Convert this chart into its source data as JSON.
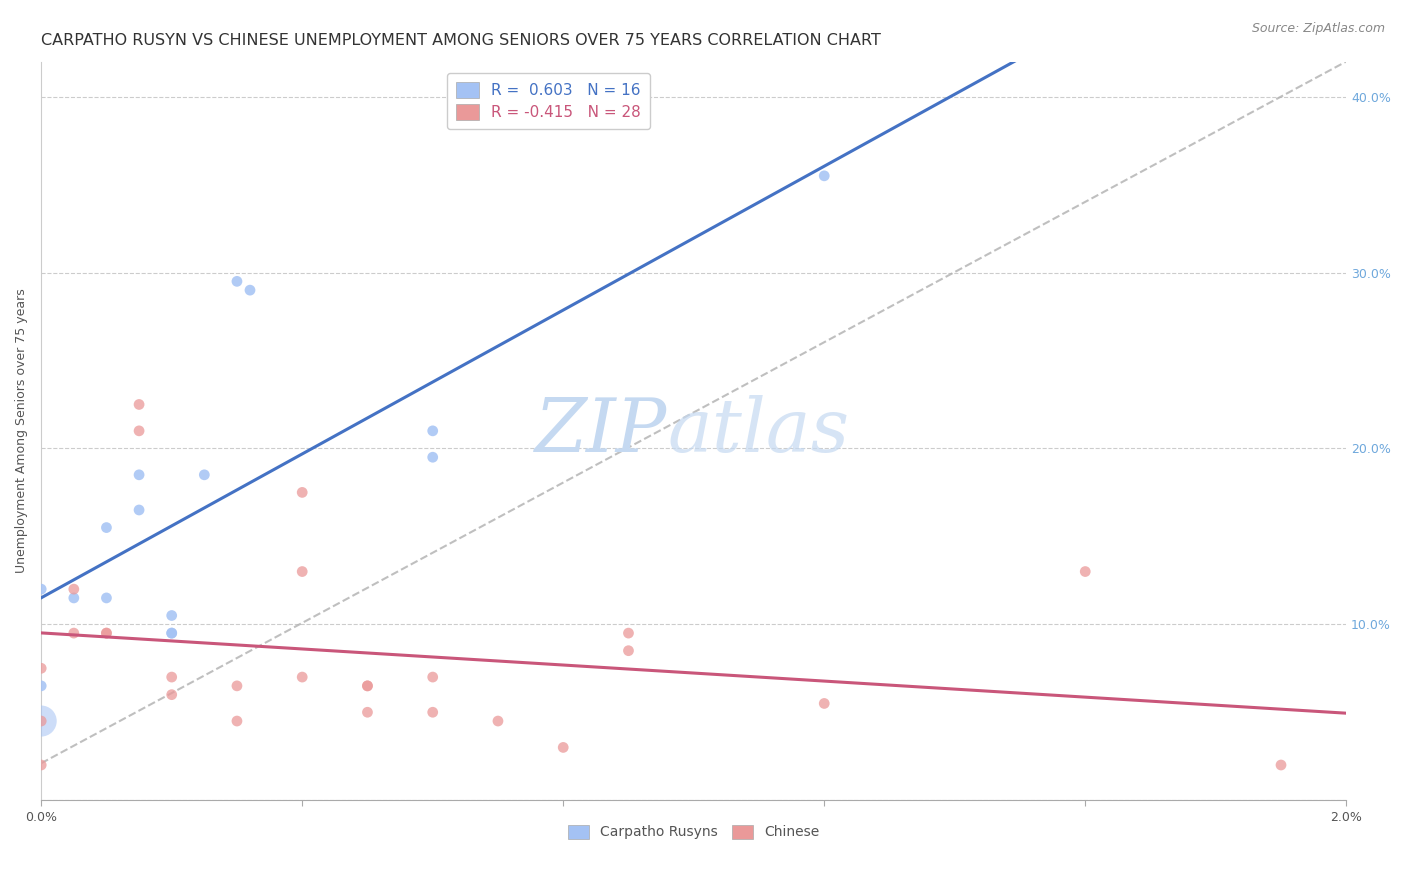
{
  "title": "CARPATHO RUSYN VS CHINESE UNEMPLOYMENT AMONG SENIORS OVER 75 YEARS CORRELATION CHART",
  "source": "Source: ZipAtlas.com",
  "ylabel": "Unemployment Among Seniors over 75 years",
  "xlim": [
    0.0,
    0.02
  ],
  "ylim": [
    0.0,
    0.42
  ],
  "xtick_vals": [
    0.0,
    0.004,
    0.008,
    0.012,
    0.016,
    0.02
  ],
  "xticklabels": [
    "0.0%",
    "",
    "",
    "",
    "",
    "2.0%"
  ],
  "ytick_vals": [
    0.0,
    0.1,
    0.2,
    0.3,
    0.4
  ],
  "yticklabels_right": [
    "",
    "10.0%",
    "20.0%",
    "30.0%",
    "40.0%"
  ],
  "carpatho_rusyn_points": [
    [
      0.0,
      0.065
    ],
    [
      0.0,
      0.12
    ],
    [
      0.0005,
      0.115
    ],
    [
      0.001,
      0.115
    ],
    [
      0.001,
      0.155
    ],
    [
      0.0015,
      0.165
    ],
    [
      0.0015,
      0.185
    ],
    [
      0.002,
      0.095
    ],
    [
      0.002,
      0.095
    ],
    [
      0.002,
      0.105
    ],
    [
      0.0025,
      0.185
    ],
    [
      0.003,
      0.295
    ],
    [
      0.0032,
      0.29
    ],
    [
      0.006,
      0.21
    ],
    [
      0.006,
      0.195
    ],
    [
      0.012,
      0.355
    ]
  ],
  "carpatho_rusyn_sizes": [
    80,
    80,
    80,
    80,
    80,
    80,
    80,
    80,
    80,
    80,
    80,
    80,
    80,
    80,
    80,
    80
  ],
  "carpatho_rusyn_large_point": [
    0.0,
    0.045
  ],
  "carpatho_rusyn_large_size": 500,
  "chinese_points": [
    [
      0.0,
      0.075
    ],
    [
      0.0,
      0.02
    ],
    [
      0.0005,
      0.12
    ],
    [
      0.0005,
      0.095
    ],
    [
      0.001,
      0.095
    ],
    [
      0.001,
      0.095
    ],
    [
      0.0015,
      0.225
    ],
    [
      0.0015,
      0.21
    ],
    [
      0.002,
      0.07
    ],
    [
      0.002,
      0.06
    ],
    [
      0.003,
      0.065
    ],
    [
      0.003,
      0.045
    ],
    [
      0.004,
      0.13
    ],
    [
      0.004,
      0.07
    ],
    [
      0.004,
      0.175
    ],
    [
      0.005,
      0.065
    ],
    [
      0.005,
      0.05
    ],
    [
      0.005,
      0.065
    ],
    [
      0.006,
      0.07
    ],
    [
      0.006,
      0.05
    ],
    [
      0.007,
      0.045
    ],
    [
      0.008,
      0.03
    ],
    [
      0.009,
      0.095
    ],
    [
      0.009,
      0.085
    ],
    [
      0.012,
      0.055
    ],
    [
      0.016,
      0.13
    ],
    [
      0.019,
      0.02
    ],
    [
      0.0,
      0.045
    ]
  ],
  "carpatho_rusyn_color": "#a4c2f4",
  "chinese_color": "#ea9999",
  "carpatho_rusyn_line_color": "#4472c4",
  "chinese_line_color": "#c9567a",
  "dashed_line_color": "#b0b0b0",
  "right_tick_color": "#6fa8dc",
  "background_color": "#ffffff",
  "watermark_zip_color": "#c5d9f1",
  "watermark_atlas_color": "#c5d9f1",
  "dot_size": 60,
  "title_fontsize": 11.5,
  "axis_label_fontsize": 9,
  "tick_fontsize": 9,
  "legend_fontsize": 11,
  "source_fontsize": 9,
  "legend_R_color": "#4472c4",
  "legend_N_color": "#333333",
  "cr_regression": [
    20.5,
    0.115
  ],
  "ch_regression": [
    -5.5,
    0.115
  ]
}
